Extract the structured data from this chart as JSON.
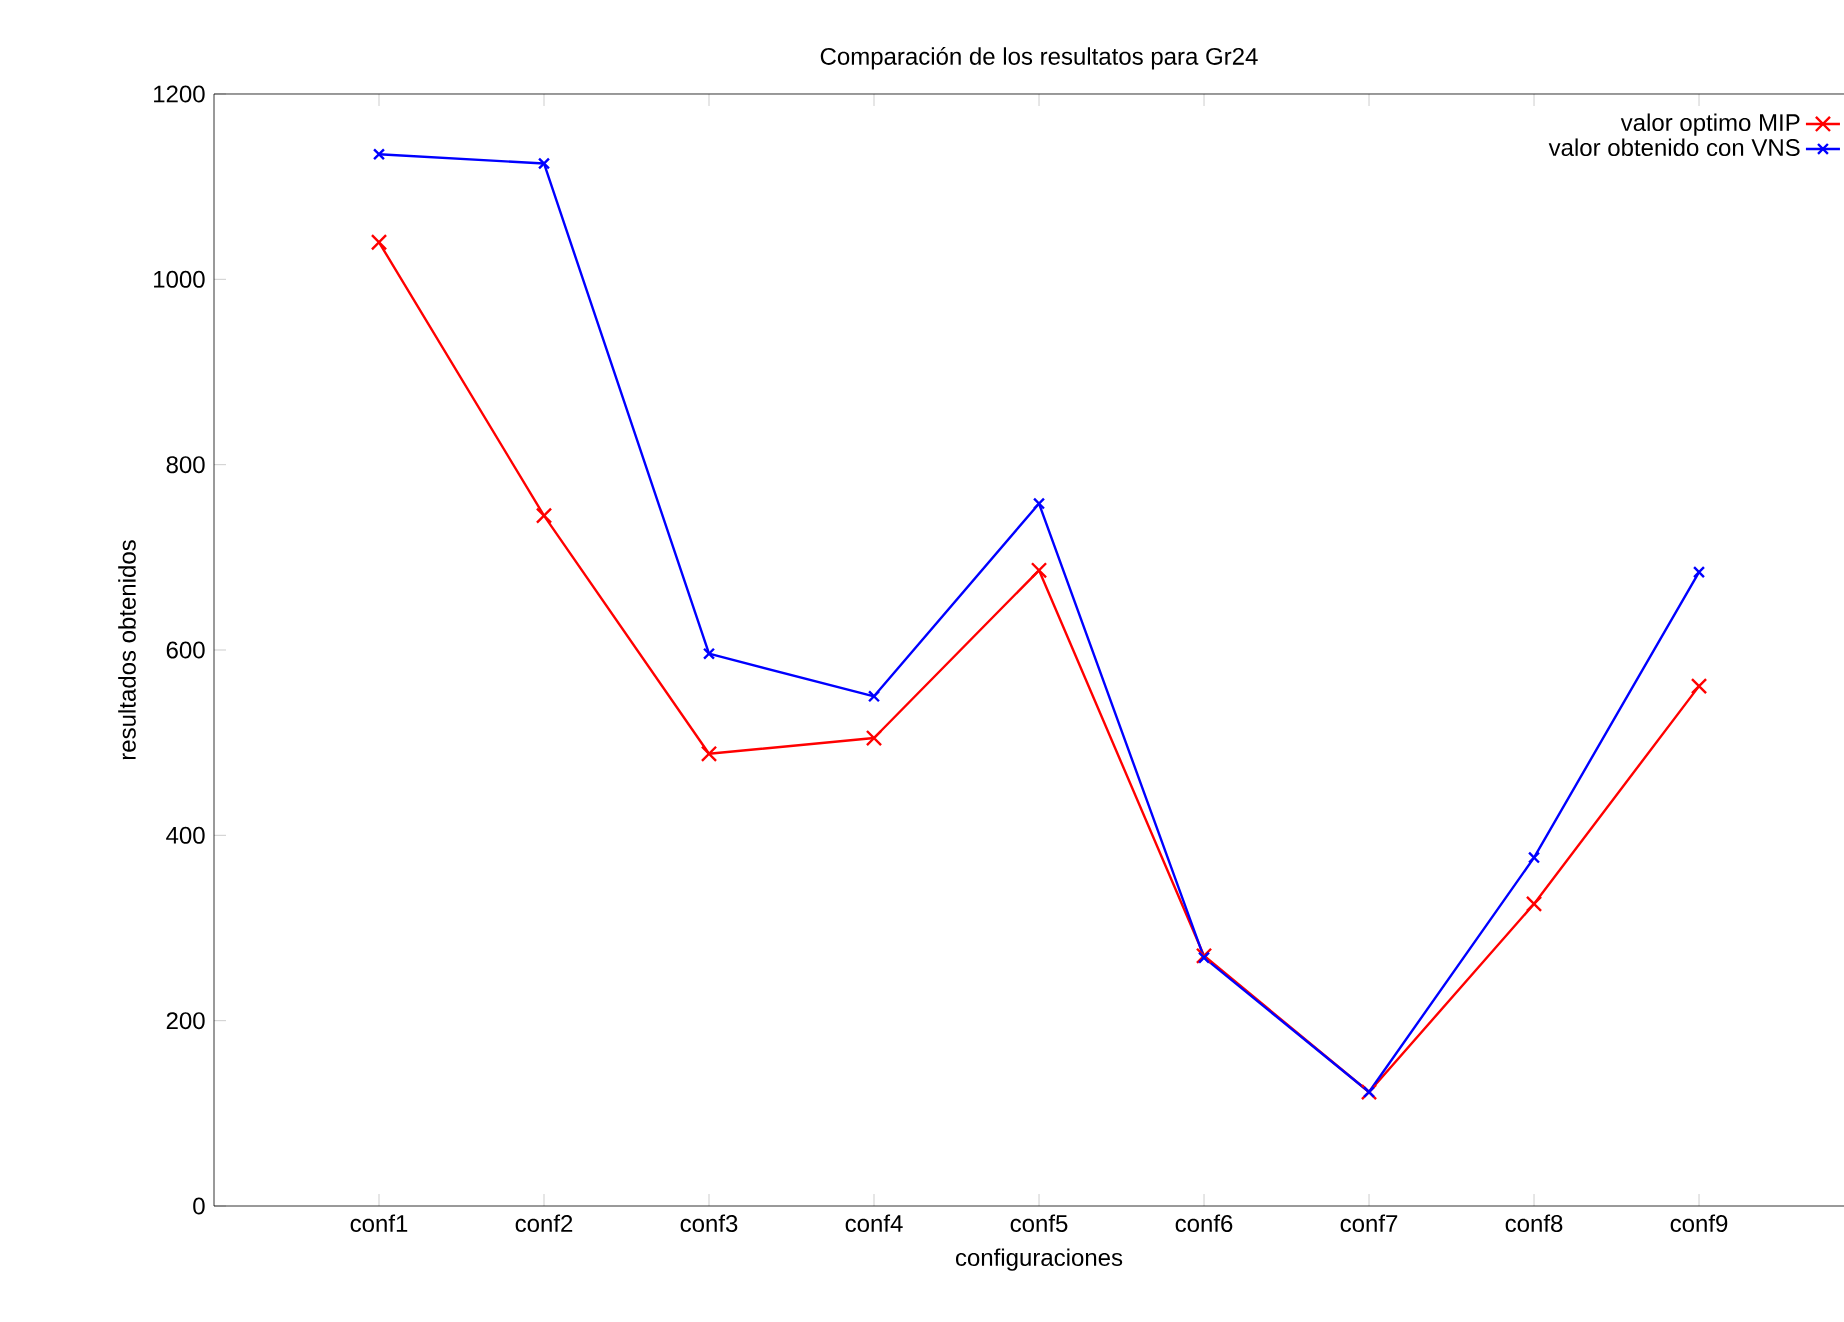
{
  "chart_data": {
    "type": "line",
    "title": "Comparación de los resultatos para Gr24",
    "xlabel": "configuraciones",
    "ylabel": "resultados obtenidos",
    "categories": [
      "conf1",
      "conf2",
      "conf3",
      "conf4",
      "conf5",
      "conf6",
      "conf7",
      "conf8",
      "conf9"
    ],
    "series": [
      {
        "name": "valor optimo MIP",
        "color": "#ff0000",
        "values": [
          1040,
          745,
          488,
          505,
          686,
          270,
          123,
          326,
          561
        ]
      },
      {
        "name": "valor obtenido con VNS",
        "color": "#0000ff",
        "values": [
          1135,
          1125,
          596,
          550,
          758,
          268,
          123,
          376,
          684
        ]
      }
    ],
    "ylim": [
      0,
      1200
    ],
    "yticks": [
      0,
      200,
      400,
      600,
      800,
      1000,
      1200
    ],
    "legend": "top right",
    "grid": false,
    "marker": "cross",
    "line_style": "solid"
  }
}
